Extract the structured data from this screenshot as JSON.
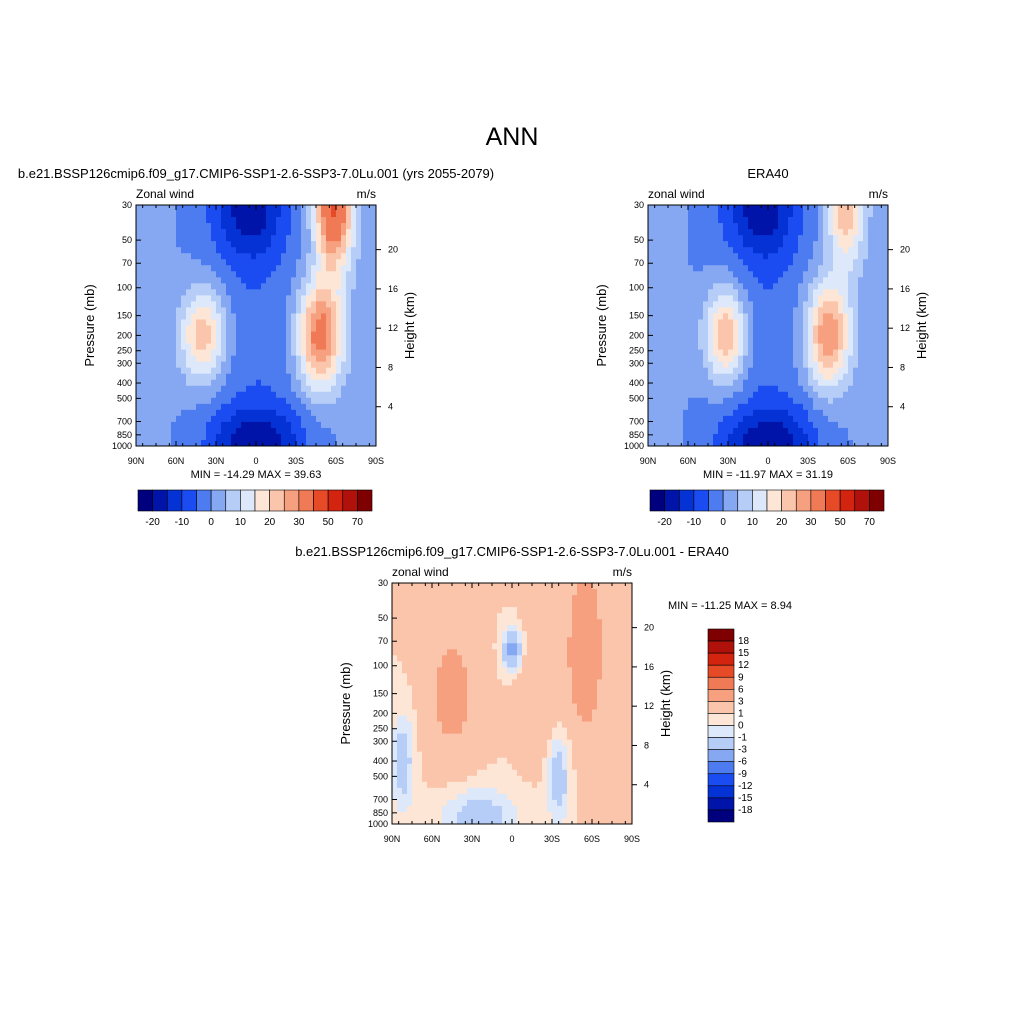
{
  "page_title": "ANN",
  "panels": [
    {
      "id": "model",
      "title": "b.e21.BSSP126cmip6.f09_g17.CMIP6-SSP1-2.6-SSP3-7.0Lu.001 (yrs 2055-2079)",
      "left_label": "Zonal wind",
      "right_label": "m/s",
      "ylabel": "Pressure (mb)",
      "ylabel_right": "Height (km)",
      "stats": "MIN = -14.29  MAX =  39.63"
    },
    {
      "id": "obs",
      "title": "ERA40",
      "left_label": "zonal wind",
      "right_label": "m/s",
      "ylabel": "Pressure (mb)",
      "ylabel_right": "Height (km)",
      "stats": "MIN = -11.97  MAX =  31.19"
    },
    {
      "id": "diff",
      "title": "b.e21.BSSP126cmip6.f09_g17.CMIP6-SSP1-2.6-SSP3-7.0Lu.001 - ERA40",
      "left_label": "zonal wind",
      "right_label": "m/s",
      "ylabel": "Pressure (mb)",
      "ylabel_right": "Height (km)",
      "stats": "MIN = -11.25  MAX =   8.94"
    }
  ],
  "chart_data": [
    {
      "type": "heatmap",
      "title": "b.e21.BSSP126cmip6.f09_g17.CMIP6-SSP1-2.6-SSP3-7.0Lu.001 (yrs 2055-2079)",
      "xlabel": "",
      "ylabel": "Pressure (mb)",
      "ylabel_right": "Height (km)",
      "x_ticks": [
        "90N",
        "60N",
        "30N",
        "0",
        "30S",
        "60S",
        "90S"
      ],
      "x_range": [
        90,
        -90
      ],
      "y_ticks": [
        30,
        50,
        70,
        100,
        150,
        200,
        250,
        300,
        400,
        500,
        700,
        850,
        1000
      ],
      "y_range": [
        1000,
        30
      ],
      "y_scale": "log",
      "height_ticks": [
        4,
        8,
        12,
        16,
        20
      ],
      "levels": [
        -20,
        -15,
        -10,
        -5,
        0,
        5,
        10,
        15,
        20,
        25,
        30,
        40,
        50,
        60,
        70
      ],
      "colorbar_labels": [
        "-20",
        "-10",
        "0",
        "10",
        "20",
        "30",
        "50",
        "70"
      ],
      "min": -14.29,
      "max": 39.63,
      "jets": [
        {
          "lat": 40,
          "p": 200,
          "peak": 24,
          "sx": 12,
          "sy": 0.28
        },
        {
          "lat": -48,
          "p": 200,
          "peak": 34,
          "sx": 12,
          "sy": 0.35
        },
        {
          "lat": -58,
          "p": 30,
          "peak": 42,
          "sx": 10,
          "sy": 0.45
        }
      ]
    },
    {
      "type": "heatmap",
      "title": "ERA40",
      "xlabel": "",
      "ylabel": "Pressure (mb)",
      "ylabel_right": "Height (km)",
      "x_ticks": [
        "90N",
        "60N",
        "30N",
        "0",
        "30S",
        "60S",
        "90S"
      ],
      "x_range": [
        90,
        -90
      ],
      "y_ticks": [
        30,
        50,
        70,
        100,
        150,
        200,
        250,
        300,
        400,
        500,
        700,
        850,
        1000
      ],
      "y_range": [
        1000,
        30
      ],
      "y_scale": "log",
      "height_ticks": [
        4,
        8,
        12,
        16,
        20
      ],
      "levels": [
        -20,
        -15,
        -10,
        -5,
        0,
        5,
        10,
        15,
        20,
        25,
        30,
        40,
        50,
        60,
        70
      ],
      "colorbar_labels": [
        "-20",
        "-10",
        "0",
        "10",
        "20",
        "30",
        "50",
        "70"
      ],
      "min": -11.97,
      "max": 31.19,
      "jets": [
        {
          "lat": 32,
          "p": 200,
          "peak": 26,
          "sx": 11,
          "sy": 0.28
        },
        {
          "lat": -45,
          "p": 200,
          "peak": 30,
          "sx": 12,
          "sy": 0.35
        },
        {
          "lat": -58,
          "p": 30,
          "peak": 24,
          "sx": 10,
          "sy": 0.45
        }
      ]
    },
    {
      "type": "heatmap",
      "title": "b.e21.BSSP126cmip6.f09_g17.CMIP6-SSP1-2.6-SSP3-7.0Lu.001 - ERA40",
      "xlabel": "",
      "ylabel": "Pressure (mb)",
      "ylabel_right": "Height (km)",
      "x_ticks": [
        "90N",
        "60N",
        "30N",
        "0",
        "30S",
        "60S",
        "90S"
      ],
      "x_range": [
        90,
        -90
      ],
      "y_ticks": [
        30,
        50,
        70,
        100,
        150,
        200,
        250,
        300,
        400,
        500,
        700,
        850,
        1000
      ],
      "y_range": [
        1000,
        30
      ],
      "y_scale": "log",
      "height_ticks": [
        4,
        8,
        12,
        16,
        20
      ],
      "levels": [
        -18,
        -15,
        -12,
        -9,
        -6,
        -3,
        -1,
        0,
        1,
        3,
        6,
        9,
        12,
        15,
        18
      ],
      "colorbar_labels": [
        "18",
        "15",
        "12",
        "9",
        "6",
        "3",
        "1",
        "0",
        "-1",
        "-3",
        "-6",
        "-9",
        "-12",
        "-15",
        "-18"
      ],
      "min": -11.25,
      "max": 8.94
    }
  ],
  "colors": {
    "blue_red_16": [
      "#00007f",
      "#0014aa",
      "#0532d4",
      "#1a4cf2",
      "#4d7cf0",
      "#86a8f2",
      "#b5cdf7",
      "#dde9fb",
      "#fde6d6",
      "#fbc5ab",
      "#f7a07f",
      "#f07a55",
      "#e64a27",
      "#d32410",
      "#b0110a",
      "#7f0000"
    ],
    "diff_16": [
      "#00007f",
      "#0014aa",
      "#0532d4",
      "#1a4cf2",
      "#4d7cf0",
      "#86a8f2",
      "#b5cdf7",
      "#dde9fb",
      "#fde6d6",
      "#fbc5ab",
      "#f7a07f",
      "#f07a55",
      "#e64a27",
      "#d32410",
      "#b0110a",
      "#7f0000"
    ]
  }
}
